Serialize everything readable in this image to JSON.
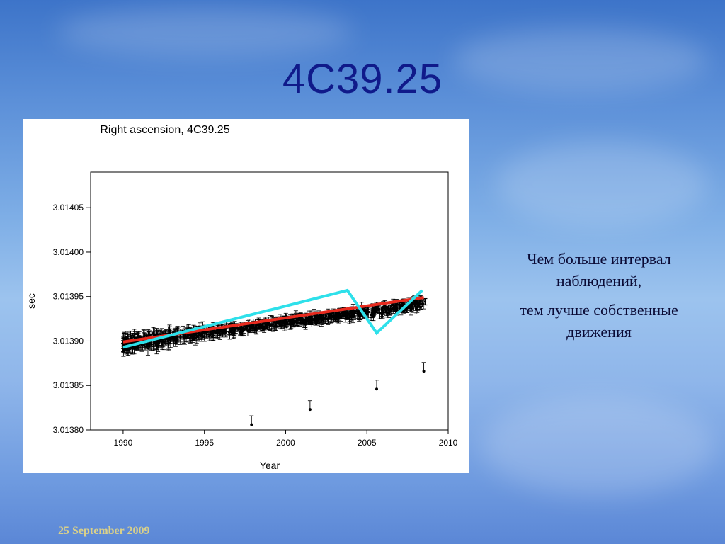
{
  "slide": {
    "title": "4C39.25",
    "caption_line1": "Чем больше интервал наблюдений,",
    "caption_line2": "тем лучше собственные движения",
    "footer_date": "25 September 2009"
  },
  "chart_data": {
    "type": "scatter",
    "title": "Right ascension, 4C39.25",
    "xlabel": "Year",
    "ylabel": "sec",
    "xlim": [
      1988.0,
      2010.0
    ],
    "ylim": [
      3.0138,
      3.01409
    ],
    "xticks": [
      "1990",
      "1995",
      "2000",
      "2005",
      "2010"
    ],
    "yticks": [
      "3.01380",
      "3.01385",
      "3.01390",
      "3.01395",
      "3.01400",
      "3.01405"
    ],
    "grid": false,
    "series": [
      {
        "kind": "points-with-error-bars",
        "color": "#000000",
        "x_range": [
          1990.0,
          2008.6
        ],
        "y_center_start": 3.013897,
        "y_center_end": 3.013942,
        "typical_error": 3.5e-06,
        "outliers": [
          {
            "x": 1997.9,
            "y": 3.013806
          },
          {
            "x": 2001.5,
            "y": 3.013823
          },
          {
            "x": 2005.6,
            "y": 3.013846
          },
          {
            "x": 2008.5,
            "y": 3.013866
          }
        ]
      },
      {
        "kind": "line",
        "color": "#e82a1e",
        "x": [
          1990.0,
          2008.5
        ],
        "y": [
          3.013899,
          3.013949
        ]
      },
      {
        "kind": "line",
        "color": "#2ee0ea",
        "x": [
          1990.0,
          2003.8,
          2005.6,
          2008.4
        ],
        "y": [
          3.013893,
          3.013957,
          3.013909,
          3.013957
        ]
      }
    ]
  }
}
